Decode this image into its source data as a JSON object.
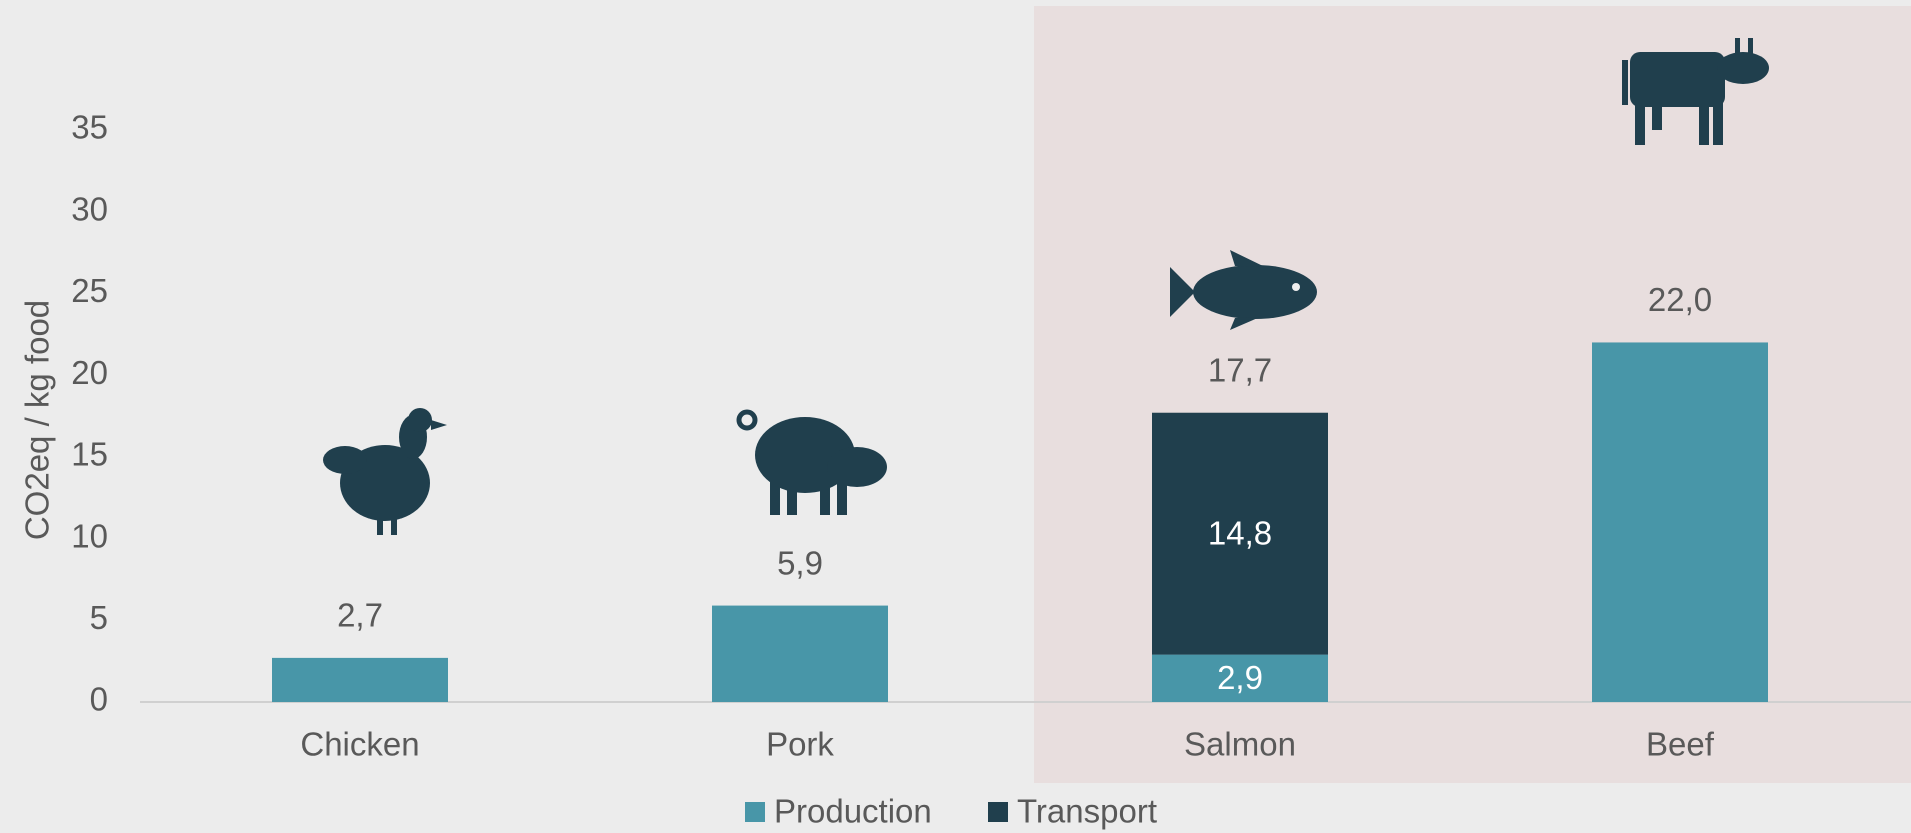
{
  "chart_data": {
    "type": "stacked_bar",
    "categories": [
      "Chicken",
      "Pork",
      "Salmon",
      "Beef"
    ],
    "series": [
      {
        "name": "Production",
        "color": "#4896a8",
        "values": [
          2.7,
          5.9,
          2.9,
          22.0
        ],
        "value_labels": [
          "2,7",
          "5,9",
          "2,9",
          "22,0"
        ]
      },
      {
        "name": "Transport",
        "color": "#203f4d",
        "values": [
          null,
          null,
          14.8,
          null
        ],
        "value_labels": [
          null,
          null,
          "14,8",
          null
        ]
      }
    ],
    "total_labels": [
      null,
      null,
      "17,7",
      null
    ],
    "y_label": "CO2eq / kg food",
    "ylim": [
      0,
      35
    ],
    "yticks": [
      0,
      5,
      10,
      15,
      20,
      25,
      30,
      35
    ],
    "highlight_categories": [
      2,
      3
    ],
    "highlight_color": "#e8dede",
    "legend": "bottom"
  }
}
